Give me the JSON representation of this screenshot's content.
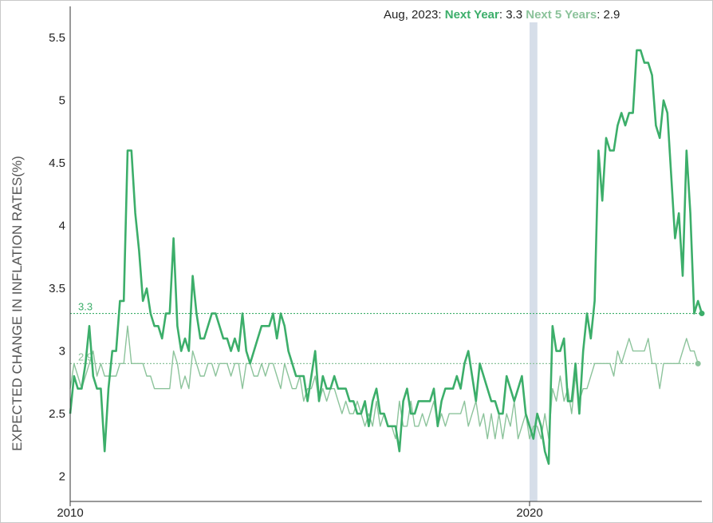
{
  "chart_data": {
    "type": "line",
    "header": {
      "date": "Aug, 2023",
      "sep": ": ",
      "s1_name": "Next Year",
      "s1_value": "3.3",
      "s2_name": "Next 5 Years",
      "s2_value": "2.9"
    },
    "ylabel": "EXPECTED CHANGE IN INFLATION RATES(%)",
    "ylim": [
      1.8,
      5.75
    ],
    "xlim": [
      2010.0,
      2023.75
    ],
    "y_ticks": [
      "2",
      "2.5",
      "3",
      "3.5",
      "4",
      "4.5",
      "5",
      "5.5"
    ],
    "x_ticks": [
      {
        "value": 2010,
        "label": "2010"
      },
      {
        "value": 2020,
        "label": "2020"
      }
    ],
    "recession": {
      "start": 2020.0,
      "end": 2020.17
    },
    "reference_lines": [
      {
        "value": 3.3,
        "label": "3.3",
        "color": "#3cae6a"
      },
      {
        "value": 2.9,
        "label": "2.9",
        "color": "#8cc39b"
      }
    ],
    "colors": {
      "next_year": "#3cae6a",
      "next_5_years": "#8cc39b",
      "recession": "#d6dee9",
      "axis": "#333333"
    },
    "start": [
      2010,
      1
    ],
    "series": [
      {
        "name": "Next Year",
        "values": [
          2.5,
          2.8,
          2.7,
          2.7,
          2.9,
          3.2,
          2.8,
          2.7,
          2.7,
          2.2,
          2.7,
          3.0,
          3.0,
          3.4,
          3.4,
          4.6,
          4.6,
          4.1,
          3.8,
          3.4,
          3.5,
          3.3,
          3.2,
          3.2,
          3.1,
          3.3,
          3.3,
          3.9,
          3.2,
          3.0,
          3.1,
          3.0,
          3.6,
          3.3,
          3.1,
          3.1,
          3.2,
          3.3,
          3.3,
          3.2,
          3.1,
          3.1,
          3.0,
          3.1,
          3.0,
          3.3,
          3.0,
          2.9,
          3.0,
          3.1,
          3.2,
          3.2,
          3.2,
          3.3,
          3.1,
          3.3,
          3.2,
          3.0,
          2.9,
          2.8,
          2.8,
          2.8,
          2.6,
          2.8,
          3.0,
          2.6,
          2.8,
          2.7,
          2.7,
          2.8,
          2.7,
          2.7,
          2.7,
          2.6,
          2.6,
          2.5,
          2.5,
          2.6,
          2.4,
          2.6,
          2.7,
          2.5,
          2.5,
          2.4,
          2.4,
          2.4,
          2.2,
          2.6,
          2.7,
          2.5,
          2.5,
          2.6,
          2.6,
          2.6,
          2.6,
          2.7,
          2.4,
          2.6,
          2.7,
          2.7,
          2.7,
          2.8,
          2.7,
          2.9,
          3.0,
          2.8,
          2.6,
          2.9,
          2.8,
          2.7,
          2.6,
          2.6,
          2.5,
          2.5,
          2.8,
          2.7,
          2.6,
          2.7,
          2.8,
          2.5,
          2.4,
          2.3,
          2.5,
          2.4,
          2.2,
          2.1,
          3.2,
          3.0,
          3.0,
          3.1,
          2.6,
          2.6,
          2.9,
          2.5,
          3.0,
          3.3,
          3.1,
          3.4,
          4.6,
          4.2,
          4.7,
          4.6,
          4.6,
          4.8,
          4.9,
          4.8,
          4.9,
          4.9,
          5.4,
          5.4,
          5.3,
          5.3,
          5.2,
          4.8,
          4.7,
          5.0,
          4.9,
          4.4,
          3.9,
          4.1,
          3.6,
          4.6,
          4.1,
          3.3,
          3.4,
          3.3
        ]
      },
      {
        "name": "Next 5 Years",
        "values": [
          2.7,
          2.9,
          2.8,
          2.7,
          2.8,
          2.9,
          3.0,
          2.8,
          2.9,
          2.8,
          2.8,
          2.8,
          2.8,
          2.9,
          2.9,
          3.2,
          2.9,
          2.9,
          2.9,
          2.9,
          2.8,
          2.8,
          2.7,
          2.7,
          2.7,
          2.7,
          2.7,
          3.0,
          2.9,
          2.7,
          2.8,
          2.7,
          3.0,
          2.9,
          2.8,
          2.8,
          2.9,
          2.9,
          2.8,
          2.9,
          2.9,
          2.9,
          2.8,
          2.9,
          2.9,
          2.7,
          2.9,
          2.9,
          2.8,
          2.8,
          2.9,
          2.8,
          2.9,
          2.9,
          2.8,
          2.7,
          2.9,
          2.8,
          2.7,
          2.7,
          2.8,
          2.6,
          2.7,
          2.7,
          2.8,
          2.6,
          2.7,
          2.6,
          2.7,
          2.7,
          2.6,
          2.5,
          2.6,
          2.5,
          2.5,
          2.6,
          2.5,
          2.4,
          2.5,
          2.4,
          2.6,
          2.4,
          2.5,
          2.4,
          2.4,
          2.3,
          2.6,
          2.4,
          2.4,
          2.6,
          2.4,
          2.4,
          2.5,
          2.4,
          2.5,
          2.6,
          2.4,
          2.5,
          2.4,
          2.5,
          2.5,
          2.5,
          2.5,
          2.6,
          2.4,
          2.5,
          2.6,
          2.4,
          2.5,
          2.3,
          2.5,
          2.3,
          2.5,
          2.3,
          2.5,
          2.4,
          2.6,
          2.3,
          2.4,
          2.5,
          2.3,
          2.4,
          2.4,
          2.3,
          2.5,
          2.3,
          2.7,
          2.6,
          2.8,
          2.6,
          2.7,
          2.5,
          2.8,
          2.6,
          2.7,
          2.7,
          2.8,
          2.9,
          2.9,
          2.9,
          2.9,
          2.9,
          2.8,
          3.0,
          2.9,
          3.0,
          3.1,
          3.0,
          3.0,
          3.0,
          3.0,
          3.1,
          2.9,
          2.9,
          2.7,
          2.9,
          2.9,
          2.9,
          2.9,
          2.9,
          3.0,
          3.1,
          3.0,
          3.0,
          2.9
        ]
      }
    ]
  }
}
